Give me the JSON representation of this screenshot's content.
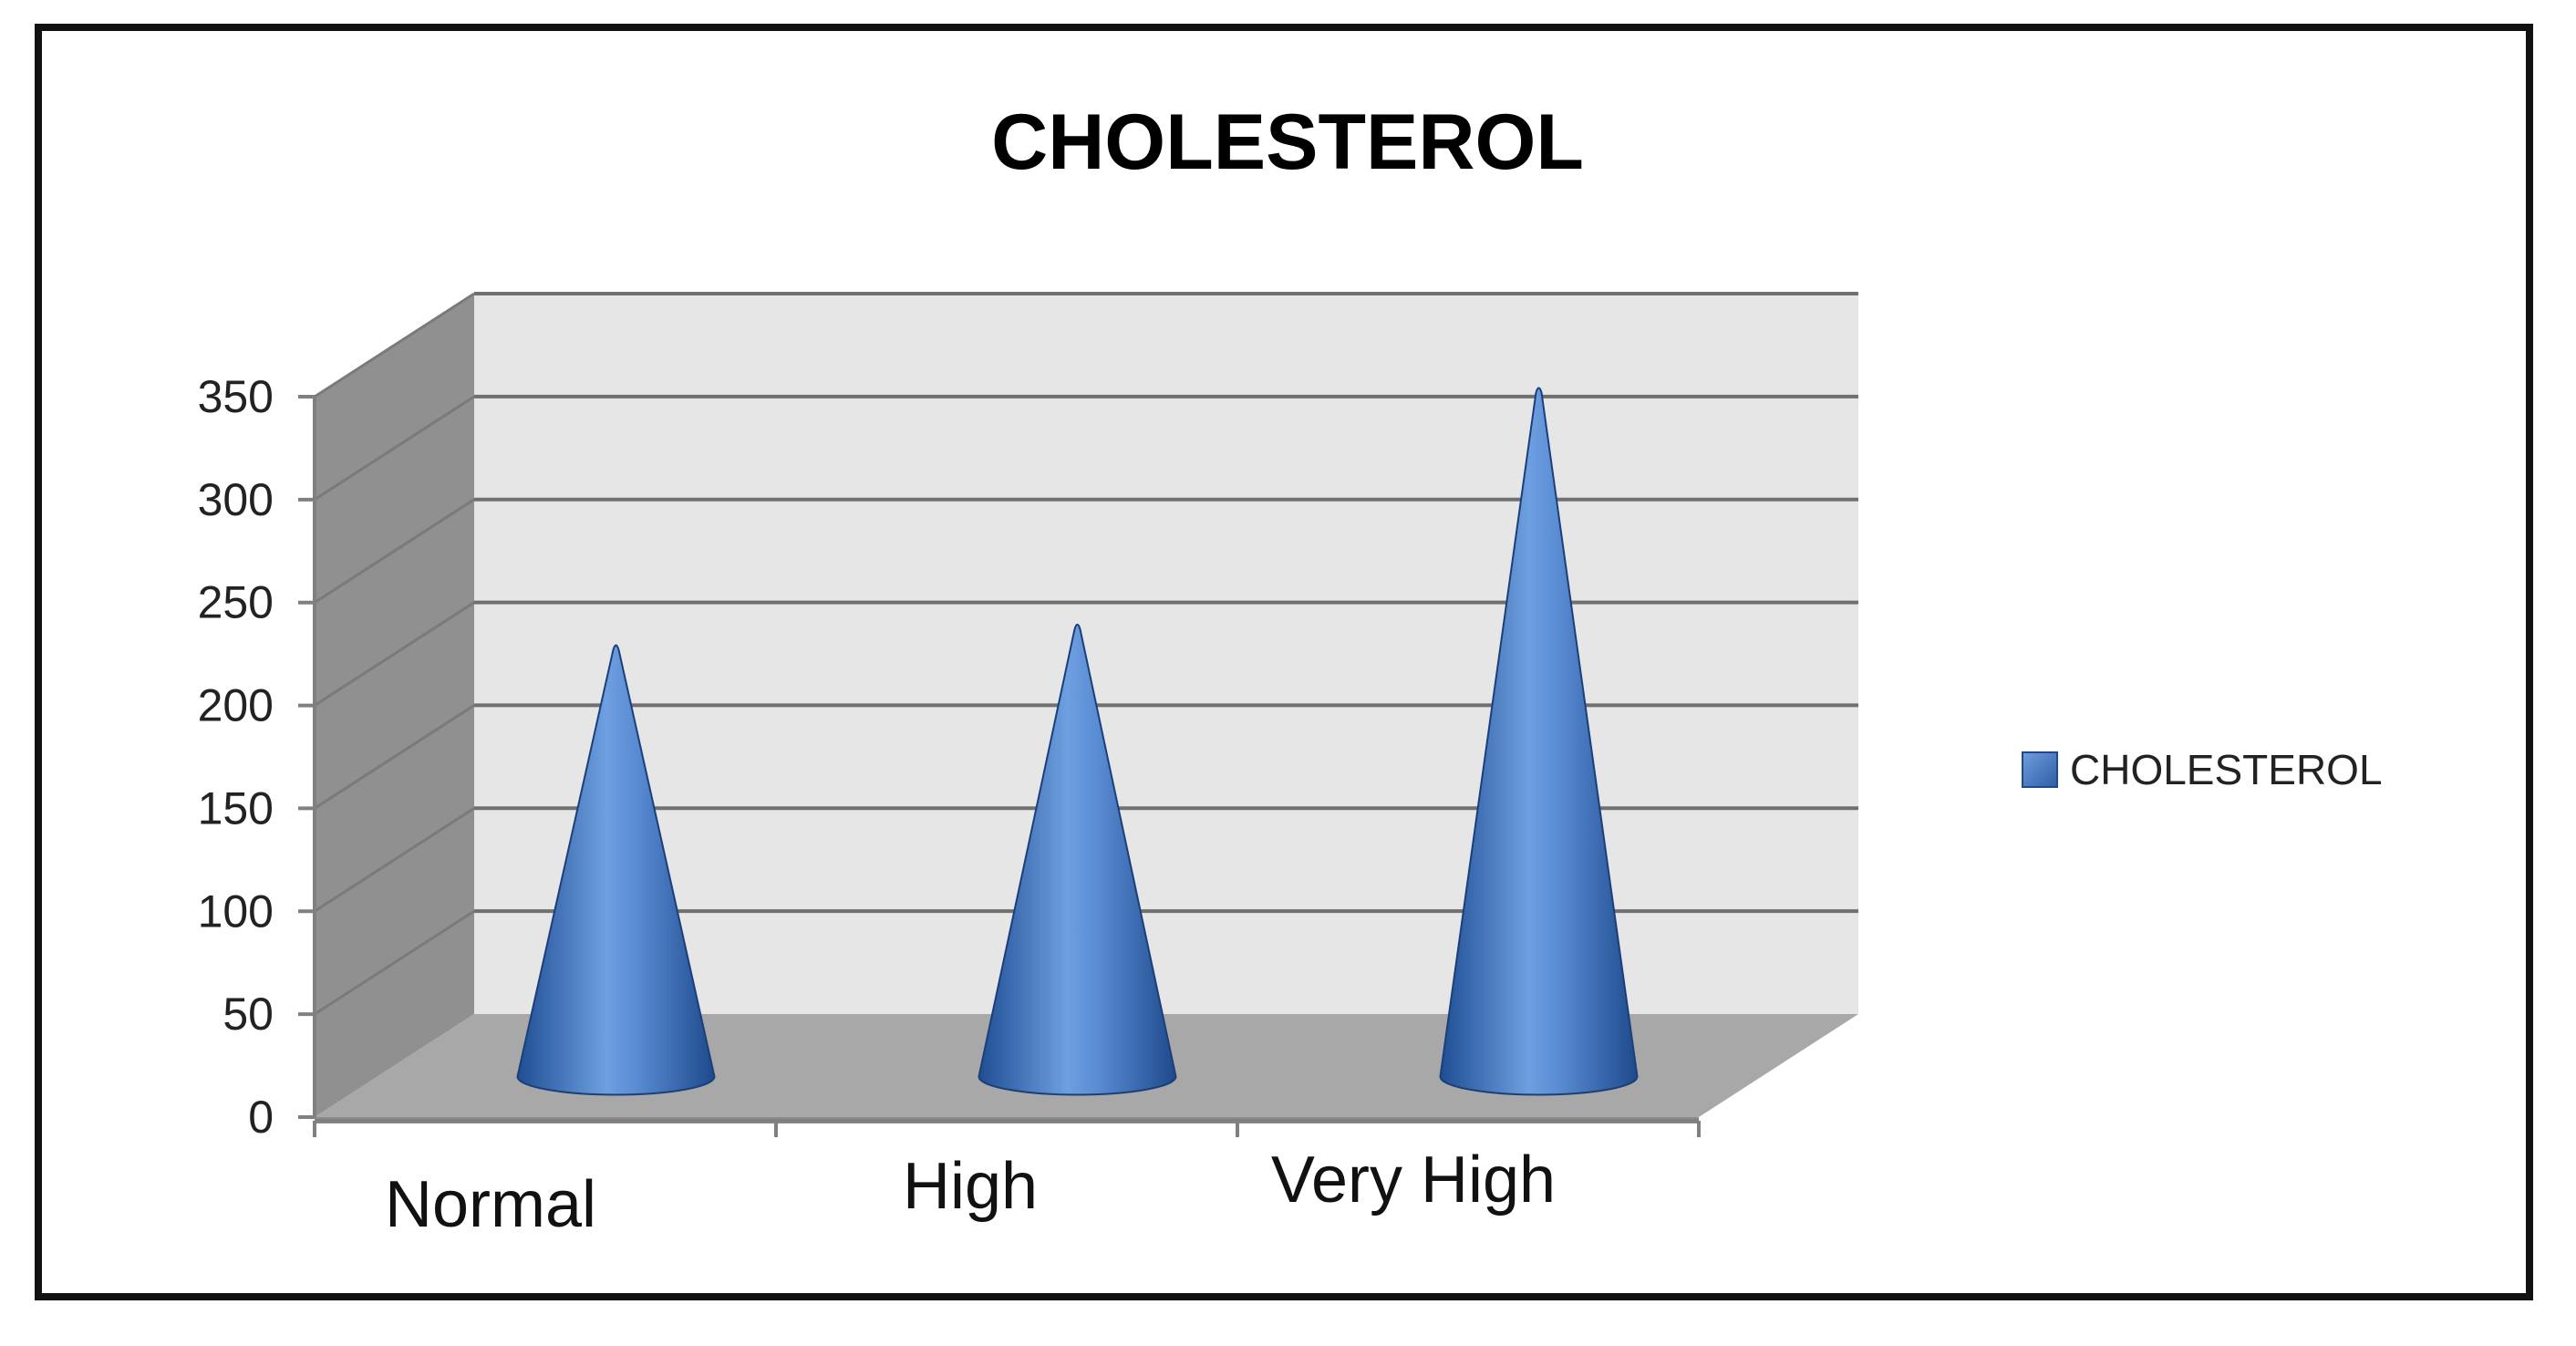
{
  "chart_data": {
    "type": "bar",
    "style": "3d-cone",
    "title": "CHOLESTEROL",
    "xlabel": "",
    "ylabel": "",
    "categories": [
      "Normal",
      "High",
      "Very High"
    ],
    "series": [
      {
        "name": "CHOLESTEROL",
        "values": [
          210,
          220,
          335
        ],
        "color": "#4A7EC7"
      }
    ],
    "ylim": [
      0,
      350
    ],
    "yticks": [
      0,
      50,
      100,
      150,
      200,
      250,
      300,
      350
    ],
    "ytick_labels": [
      "0",
      "50",
      "100",
      "150",
      "200",
      "250",
      "300",
      "350"
    ],
    "grid": true,
    "legend": "right",
    "colors": {
      "back_wall": "#E6E6E6",
      "side_wall": "#909090",
      "floor": "#A8A8A8",
      "gridline": "#707070",
      "frame": "#111111"
    }
  }
}
